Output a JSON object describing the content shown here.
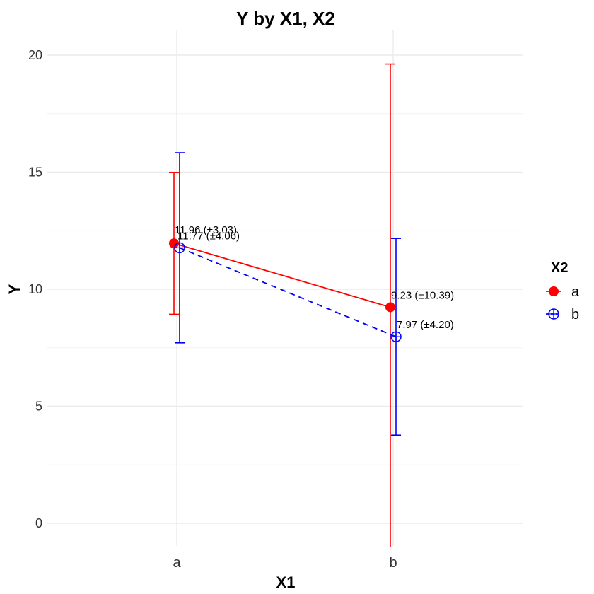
{
  "chart_data": {
    "type": "line",
    "title": "Y by X1, X2",
    "xlabel": "X1",
    "ylabel": "Y",
    "categories": [
      "a",
      "b"
    ],
    "yticks": [
      0,
      5,
      10,
      15,
      20
    ],
    "ylim": [
      -1,
      21
    ],
    "grid": true,
    "legend": {
      "title": "X2",
      "position": "right"
    },
    "series": [
      {
        "name": "a",
        "color": "#ff0000",
        "marker": "filled-circle",
        "line": "solid",
        "values": [
          11.96,
          9.23
        ],
        "errors": [
          3.03,
          10.39
        ],
        "labels": [
          "11.96 (±3.03)",
          "9.23 (±10.39)"
        ]
      },
      {
        "name": "b",
        "color": "#0000ff",
        "marker": "crossed-circle",
        "line": "dashed",
        "values": [
          11.77,
          7.97
        ],
        "errors": [
          4.06,
          4.2
        ],
        "labels": [
          "11.77 (±4.06)",
          "7.97 (±4.20)"
        ]
      }
    ]
  }
}
